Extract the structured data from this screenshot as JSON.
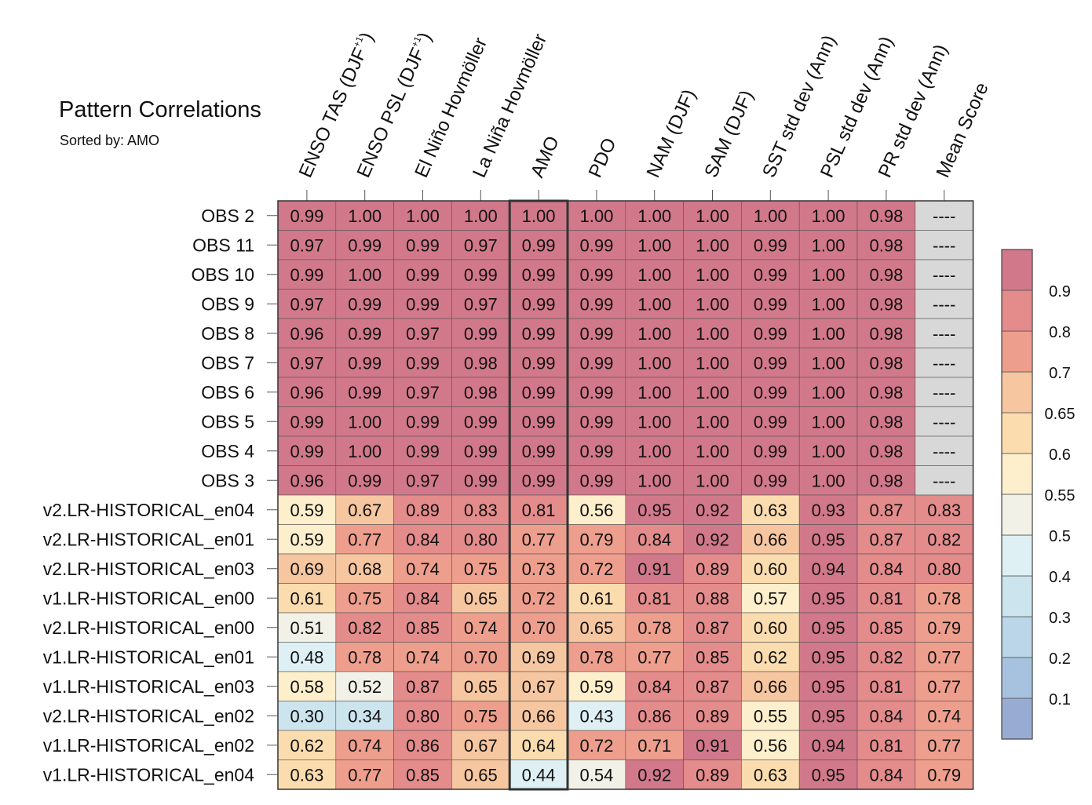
{
  "chart_data": {
    "type": "heatmap",
    "title": "Pattern Correlations",
    "subtitle": "Sorted by: AMO",
    "columns": [
      {
        "label": "ENSO TAS (DJF",
        "sup": "+1",
        "suffix": ")"
      },
      {
        "label": "ENSO PSL (DJF",
        "sup": "+1",
        "suffix": ")"
      },
      {
        "label": "El Niño Hovmöller",
        "sup": "",
        "suffix": ""
      },
      {
        "label": "La Niña Hovmöller",
        "sup": "",
        "suffix": ""
      },
      {
        "label": "AMO",
        "sup": "",
        "suffix": ""
      },
      {
        "label": "PDO",
        "sup": "",
        "suffix": ""
      },
      {
        "label": "NAM (DJF)",
        "sup": "",
        "suffix": ""
      },
      {
        "label": "SAM (DJF)",
        "sup": "",
        "suffix": ""
      },
      {
        "label": "SST std dev (Ann)",
        "sup": "",
        "suffix": ""
      },
      {
        "label": "PSL std dev (Ann)",
        "sup": "",
        "suffix": ""
      },
      {
        "label": "PR std dev (Ann)",
        "sup": "",
        "suffix": ""
      },
      {
        "label": "Mean Score",
        "sup": "",
        "suffix": ""
      }
    ],
    "highlighted_column": "AMO",
    "missing_text": "----",
    "rows": [
      {
        "label": "OBS 2",
        "values": [
          0.99,
          1.0,
          1.0,
          1.0,
          1.0,
          1.0,
          1.0,
          1.0,
          1.0,
          1.0,
          0.98,
          null
        ]
      },
      {
        "label": "OBS 11",
        "values": [
          0.97,
          0.99,
          0.99,
          0.97,
          0.99,
          0.99,
          1.0,
          1.0,
          0.99,
          1.0,
          0.98,
          null
        ]
      },
      {
        "label": "OBS 10",
        "values": [
          0.99,
          1.0,
          0.99,
          0.99,
          0.99,
          0.99,
          1.0,
          1.0,
          0.99,
          1.0,
          0.98,
          null
        ]
      },
      {
        "label": "OBS 9",
        "values": [
          0.97,
          0.99,
          0.99,
          0.97,
          0.99,
          0.99,
          1.0,
          1.0,
          0.99,
          1.0,
          0.98,
          null
        ]
      },
      {
        "label": "OBS 8",
        "values": [
          0.96,
          0.99,
          0.97,
          0.99,
          0.99,
          0.99,
          1.0,
          1.0,
          0.99,
          1.0,
          0.98,
          null
        ]
      },
      {
        "label": "OBS 7",
        "values": [
          0.97,
          0.99,
          0.99,
          0.98,
          0.99,
          0.99,
          1.0,
          1.0,
          0.99,
          1.0,
          0.98,
          null
        ]
      },
      {
        "label": "OBS 6",
        "values": [
          0.96,
          0.99,
          0.97,
          0.98,
          0.99,
          0.99,
          1.0,
          1.0,
          0.99,
          1.0,
          0.98,
          null
        ]
      },
      {
        "label": "OBS 5",
        "values": [
          0.99,
          1.0,
          0.99,
          0.99,
          0.99,
          0.99,
          1.0,
          1.0,
          0.99,
          1.0,
          0.98,
          null
        ]
      },
      {
        "label": "OBS 4",
        "values": [
          0.99,
          1.0,
          0.99,
          0.99,
          0.99,
          0.99,
          1.0,
          1.0,
          0.99,
          1.0,
          0.98,
          null
        ]
      },
      {
        "label": "OBS 3",
        "values": [
          0.96,
          0.99,
          0.97,
          0.99,
          0.99,
          0.99,
          1.0,
          1.0,
          0.99,
          1.0,
          0.98,
          null
        ]
      },
      {
        "label": "v2.LR-HISTORICAL_en04",
        "values": [
          0.59,
          0.67,
          0.89,
          0.83,
          0.81,
          0.56,
          0.95,
          0.92,
          0.63,
          0.93,
          0.87,
          0.83
        ]
      },
      {
        "label": "v2.LR-HISTORICAL_en01",
        "values": [
          0.59,
          0.77,
          0.84,
          0.8,
          0.77,
          0.79,
          0.84,
          0.92,
          0.66,
          0.95,
          0.87,
          0.82
        ]
      },
      {
        "label": "v2.LR-HISTORICAL_en03",
        "values": [
          0.69,
          0.68,
          0.74,
          0.75,
          0.73,
          0.72,
          0.91,
          0.89,
          0.6,
          0.94,
          0.84,
          0.8
        ]
      },
      {
        "label": "v1.LR-HISTORICAL_en00",
        "values": [
          0.61,
          0.75,
          0.84,
          0.65,
          0.72,
          0.61,
          0.81,
          0.88,
          0.57,
          0.95,
          0.81,
          0.78
        ]
      },
      {
        "label": "v2.LR-HISTORICAL_en00",
        "values": [
          0.51,
          0.82,
          0.85,
          0.74,
          0.7,
          0.65,
          0.78,
          0.87,
          0.6,
          0.95,
          0.85,
          0.79
        ]
      },
      {
        "label": "v1.LR-HISTORICAL_en01",
        "values": [
          0.48,
          0.78,
          0.74,
          0.7,
          0.69,
          0.78,
          0.77,
          0.85,
          0.62,
          0.95,
          0.82,
          0.77
        ]
      },
      {
        "label": "v1.LR-HISTORICAL_en03",
        "values": [
          0.58,
          0.52,
          0.87,
          0.65,
          0.67,
          0.59,
          0.84,
          0.87,
          0.66,
          0.95,
          0.81,
          0.77
        ]
      },
      {
        "label": "v2.LR-HISTORICAL_en02",
        "values": [
          0.3,
          0.34,
          0.8,
          0.75,
          0.66,
          0.43,
          0.86,
          0.89,
          0.55,
          0.95,
          0.84,
          0.74
        ]
      },
      {
        "label": "v1.LR-HISTORICAL_en02",
        "values": [
          0.62,
          0.74,
          0.86,
          0.67,
          0.64,
          0.72,
          0.71,
          0.91,
          0.56,
          0.94,
          0.81,
          0.77
        ]
      },
      {
        "label": "v1.LR-HISTORICAL_en04",
        "values": [
          0.63,
          0.77,
          0.85,
          0.65,
          0.44,
          0.54,
          0.92,
          0.89,
          0.63,
          0.95,
          0.84,
          0.79
        ]
      }
    ],
    "colorbar": {
      "levels": [
        0.1,
        0.2,
        0.3,
        0.4,
        0.5,
        0.55,
        0.6,
        0.65,
        0.7,
        0.8,
        0.9
      ],
      "tick_labels": [
        "0.1",
        "0.2",
        "0.3",
        "0.4",
        "0.5",
        "0.55",
        "0.6",
        "0.65",
        "0.7",
        "0.8",
        "0.9"
      ],
      "colors": [
        "#98acd3",
        "#a7c2de",
        "#bad6e8",
        "#cce4ee",
        "#def0f4",
        "#f1f1e7",
        "#fdefcc",
        "#fadcae",
        "#f6c6a0",
        "#ee9e8d",
        "#e48b8c",
        "#d2788b"
      ],
      "missing_color": "#d8d8d8"
    }
  }
}
